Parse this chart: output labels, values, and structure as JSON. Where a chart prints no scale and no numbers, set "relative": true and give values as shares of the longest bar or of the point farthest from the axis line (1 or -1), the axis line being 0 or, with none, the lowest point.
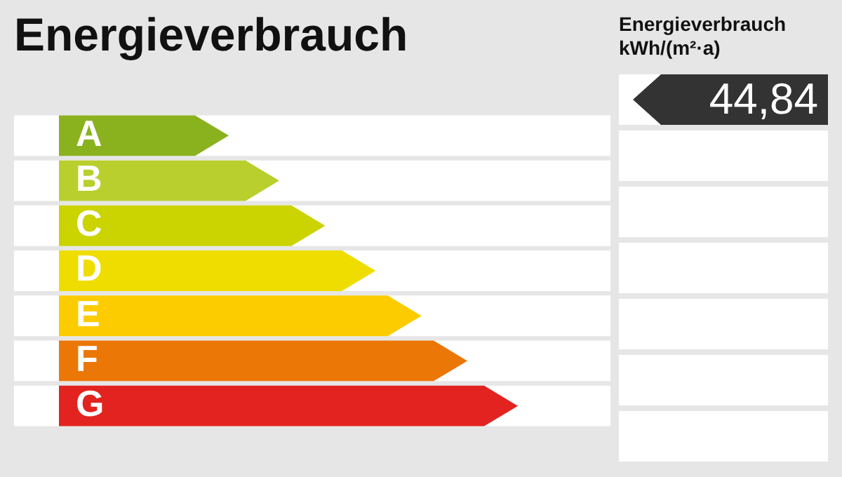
{
  "chart_data": {
    "type": "bar",
    "orientation": "horizontal",
    "relative": true,
    "title": "Energieverbrauch",
    "categories": [
      "A",
      "B",
      "C",
      "D",
      "E",
      "F",
      "G"
    ],
    "values": [
      0.37,
      0.48,
      0.58,
      0.69,
      0.79,
      0.89,
      1
    ],
    "colors": [
      "#8ab21f",
      "#b9cf2e",
      "#cbd400",
      "#f0dd00",
      "#fccc00",
      "#eb7707",
      "#e2231f"
    ],
    "annotations": [
      "Energieverbrauch kWh/(m²·a)",
      "44,84"
    ]
  }
}
